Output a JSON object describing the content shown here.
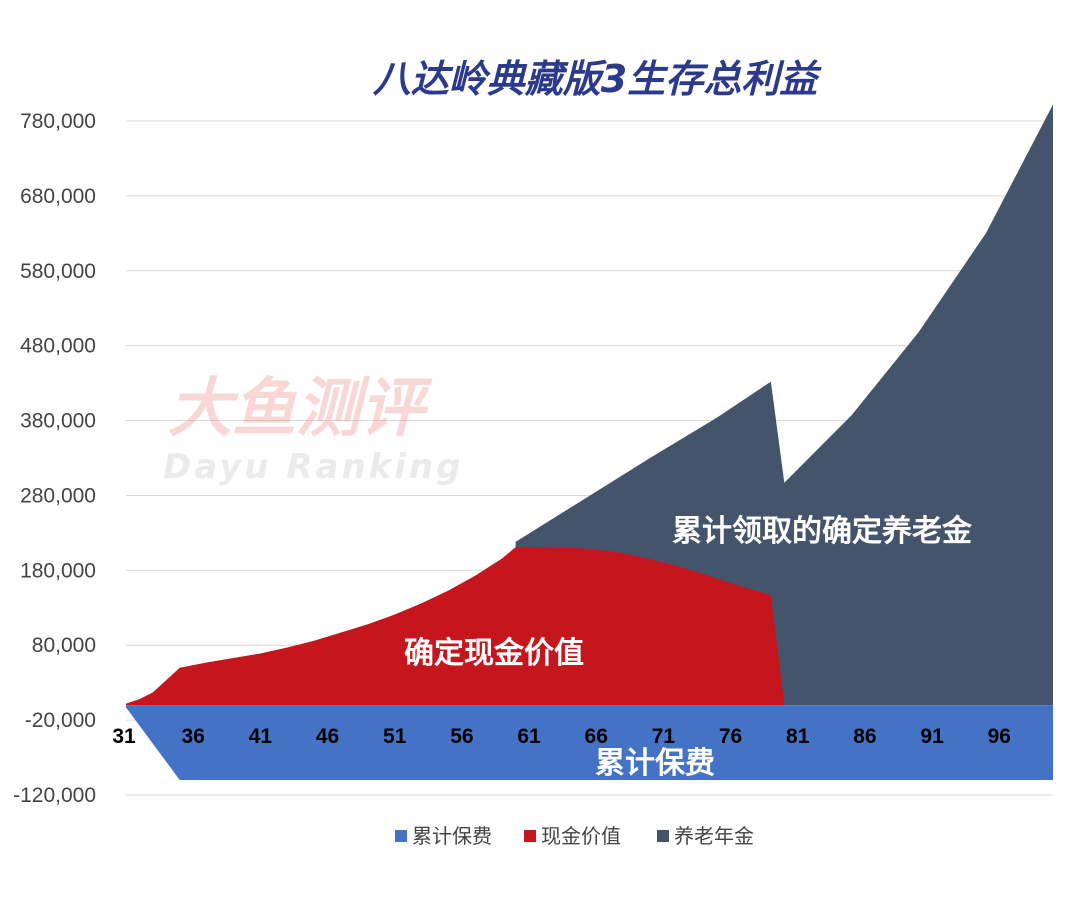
{
  "chart_data": {
    "type": "area",
    "title": "八达岭典藏版3生存总利益",
    "ylim": [
      -120000,
      800000
    ],
    "yticks": [
      -120000,
      -20000,
      80000,
      180000,
      280000,
      380000,
      480000,
      580000,
      680000,
      780000
    ],
    "ytick_labels": [
      "-120,000",
      "-20,000",
      "80,000",
      "180,000",
      "280,000",
      "380,000",
      "480,000",
      "580,000",
      "680,000",
      "780,000"
    ],
    "xlim": [
      31,
      100
    ],
    "xticks": [
      31,
      36,
      41,
      46,
      51,
      56,
      61,
      66,
      71,
      76,
      81,
      86,
      91,
      96
    ],
    "xtick_labels": [
      "31",
      "36",
      "41",
      "46",
      "51",
      "56",
      "61",
      "66",
      "71",
      "76",
      "81",
      "86",
      "91",
      "96"
    ],
    "grid": true,
    "legend_position": "bottom",
    "series": [
      {
        "name": "累计保费",
        "color": "#4472c4",
        "x": [
          31,
          35,
          100
        ],
        "y": [
          -3000,
          -100000,
          -100000
        ]
      },
      {
        "name": "现金价值",
        "color": "#c4161c",
        "x": [
          31,
          32,
          33,
          35,
          37,
          39,
          41,
          43,
          45,
          47,
          49,
          51,
          53,
          55,
          57,
          59,
          60,
          61,
          64,
          66,
          68,
          70,
          72,
          74,
          76,
          78,
          79,
          80
        ],
        "y": [
          2000,
          8000,
          17000,
          50000,
          57000,
          63000,
          69000,
          77000,
          86000,
          97000,
          108000,
          121000,
          136000,
          153000,
          173000,
          196000,
          211000,
          211000,
          210000,
          208000,
          203000,
          195000,
          186000,
          175000,
          163000,
          152000,
          147000,
          0
        ]
      },
      {
        "name": "养老年金",
        "color": "#44546a",
        "x": [
          60,
          65,
          70,
          75,
          79,
          80,
          85,
          90,
          95,
          100
        ],
        "y": [
          218000,
          274000,
          330000,
          384000,
          432000,
          297000,
          387000,
          498000,
          630000,
          802000
        ]
      }
    ],
    "annotations": {
      "pension_label": "累计领取的确定养老金",
      "cash_label": "确定现金价值",
      "premium_label": "累计保费"
    }
  },
  "watermark": {
    "cn": "大鱼测评",
    "en": "Dayu Ranking"
  }
}
